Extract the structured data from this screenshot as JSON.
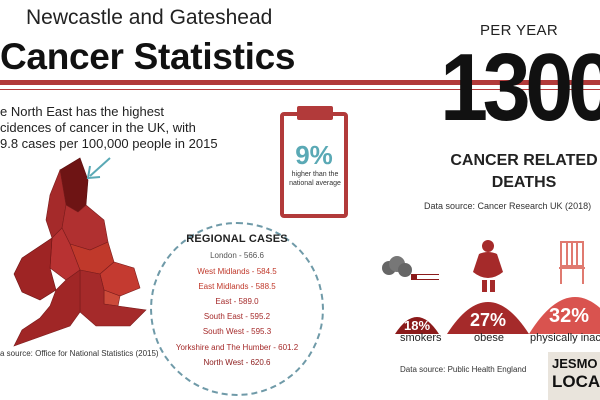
{
  "header": {
    "title_line1": "Newcastle and Gateshead",
    "title_line2": "Cancer Statistics"
  },
  "intro": {
    "line1": "e North East has the highest",
    "line2": "cidences of cancer in the UK, with",
    "line3": "9.8 cases per 100,000 people in 2015"
  },
  "callout": {
    "percent": "9%",
    "text": "higher than the national average"
  },
  "deaths": {
    "per_year_label": "PER YEAR",
    "number": "1300",
    "label_line1": "CANCER RELATED",
    "label_line2": "DEATHS",
    "source": "Data source: Cancer Research UK (2018)"
  },
  "regional": {
    "title": "REGIONAL CASES",
    "items": [
      {
        "text": "London - 566.6",
        "color": "#555555"
      },
      {
        "text": "West Midlands - 584.5",
        "color": "#c0392b"
      },
      {
        "text": "East Midlands - 588.5",
        "color": "#c0392b"
      },
      {
        "text": "East - 589.0",
        "color": "#a52a2a"
      },
      {
        "text": "South East - 595.2",
        "color": "#a52a2a"
      },
      {
        "text": "South West - 595.3",
        "color": "#a52a2a"
      },
      {
        "text": "Yorkshire and The Humber - 601.2",
        "color": "#a52a2a"
      },
      {
        "text": "North West - 620.6",
        "color": "#8b1a1a"
      }
    ]
  },
  "map": {
    "source": "a source: Office for National Statistics (2015)"
  },
  "lifestyle": {
    "smokers": {
      "percent": "18%",
      "label": "smokers"
    },
    "obese": {
      "percent": "27%",
      "label": "obese"
    },
    "inactive": {
      "percent": "32%",
      "label": "physically inac"
    },
    "source": "Data source: Public Health England"
  },
  "logo": {
    "line1": "JESMO",
    "line2": "LOCA"
  },
  "colors": {
    "accent": "#b23a3a",
    "teal": "#5aa9b5",
    "dark_red": "#8b1a1a"
  }
}
